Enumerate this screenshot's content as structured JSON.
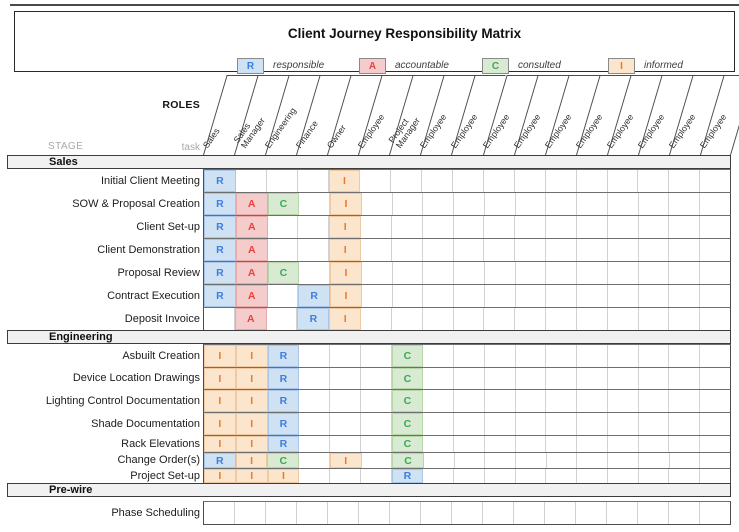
{
  "title": "Client Journey Responsibility Matrix",
  "labels": {
    "roles": "ROLES",
    "stage": "STAGE",
    "task": "task"
  },
  "codes": {
    "R": {
      "meaning": "responsible",
      "bg": "#cfe2f3",
      "border": "#a9c6e8",
      "text": "#3e7ee0"
    },
    "A": {
      "meaning": "accountable",
      "bg": "#f4cccc",
      "border": "#e5a9a9",
      "text": "#e8423d"
    },
    "C": {
      "meaning": "consulted",
      "bg": "#d9ead3",
      "border": "#b6d5a9",
      "text": "#3ba858"
    },
    "I": {
      "meaning": "informed",
      "bg": "#fce5cd",
      "border": "#efc9a1",
      "text": "#ec7a2c"
    }
  },
  "legend": [
    {
      "code": "R",
      "label": "responsible"
    },
    {
      "code": "A",
      "label": "accountable"
    },
    {
      "code": "C",
      "label": "consulted"
    },
    {
      "code": "I",
      "label": "informed"
    }
  ],
  "columns": [
    "Sales",
    "Sales\nManager",
    "Engineering",
    "Finance",
    "Owner",
    "Employee",
    "Project\nManager",
    "Employee",
    "Employee",
    "Employee",
    "Employee",
    "Employee",
    "Employee",
    "Employee",
    "Employee",
    "Employee",
    "Employee"
  ],
  "sections": [
    {
      "name": "Sales",
      "rows": [
        {
          "task": "Initial Client Meeting",
          "cells": {
            "0": "R",
            "4": "I"
          }
        },
        {
          "task": "SOW & Proposal Creation",
          "cells": {
            "0": "R",
            "1": "A",
            "2": "C",
            "4": "I"
          }
        },
        {
          "task": "Client Set-up",
          "cells": {
            "0": "R",
            "1": "A",
            "4": "I"
          }
        },
        {
          "task": "Client Demonstration",
          "cells": {
            "0": "R",
            "1": "A",
            "4": "I"
          }
        },
        {
          "task": "Proposal Review",
          "cells": {
            "0": "R",
            "1": "A",
            "2": "C",
            "4": "I"
          }
        },
        {
          "task": "Contract Execution",
          "cells": {
            "0": "R",
            "1": "A",
            "3": "R",
            "4": "I"
          }
        },
        {
          "task": "Deposit Invoice",
          "cells": {
            "1": "A",
            "3": "R",
            "4": "I"
          }
        }
      ]
    },
    {
      "name": "Engineering",
      "rows": [
        {
          "task": "Asbuilt Creation",
          "cells": {
            "0": "I",
            "1": "I",
            "2": "R",
            "6": "C"
          }
        },
        {
          "task": "Device Location Drawings",
          "cells": {
            "0": "I",
            "1": "I",
            "2": "R",
            "6": "C"
          }
        },
        {
          "task": "Lighting Control Documentation",
          "cells": {
            "0": "I",
            "1": "I",
            "2": "R",
            "6": "C"
          }
        },
        {
          "task": "Shade Documentation",
          "cells": {
            "0": "I",
            "1": "I",
            "2": "R",
            "6": "C"
          }
        },
        {
          "task": "Rack Elevations",
          "cells": {
            "0": "I",
            "1": "I",
            "2": "R",
            "6": "C"
          }
        },
        {
          "task": "Change Order(s)",
          "cells": {
            "0": "R",
            "1": "I",
            "2": "C",
            "4": "I",
            "6": "C"
          }
        },
        {
          "task": "Project Set-up",
          "cells": {
            "0": "I",
            "1": "I",
            "2": "I",
            "6": "R"
          }
        }
      ]
    },
    {
      "name": "Pre-wire",
      "rows": [
        {
          "task": "Phase Scheduling",
          "cells": {}
        }
      ]
    }
  ]
}
